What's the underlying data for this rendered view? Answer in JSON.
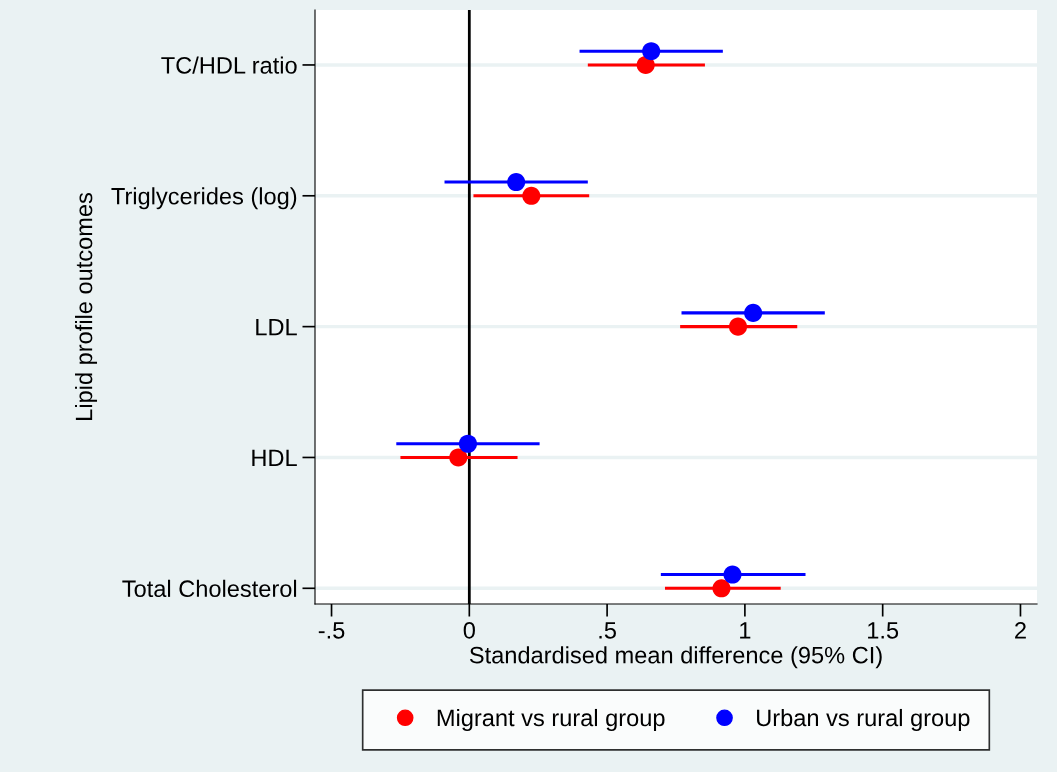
{
  "chart_data": {
    "type": "scatter",
    "orientation": "horizontal",
    "xlabel": "Standardised mean difference (95% CI)",
    "ylabel": "Lipid profile outcomes",
    "categories": [
      "TC/HDL ratio",
      "Triglycerides (log)",
      "LDL",
      "HDL",
      "Total Cholesterol"
    ],
    "series": [
      {
        "name": "Migrant vs rural group",
        "color": "#ff0000",
        "values": [
          0.64,
          0.225,
          0.975,
          -0.04,
          0.915
        ],
        "errors": [
          [
            0.43,
            0.855
          ],
          [
            0.015,
            0.435
          ],
          [
            0.765,
            1.19
          ],
          [
            -0.25,
            0.175
          ],
          [
            0.71,
            1.13
          ]
        ]
      },
      {
        "name": "Urban vs rural group",
        "color": "#0000ff",
        "values": [
          0.66,
          0.17,
          1.03,
          -0.005,
          0.955
        ],
        "errors": [
          [
            0.4,
            0.92
          ],
          [
            -0.09,
            0.43
          ],
          [
            0.77,
            1.29
          ],
          [
            -0.265,
            0.255
          ],
          [
            0.695,
            1.22
          ]
        ]
      }
    ],
    "xlim": [
      -0.56,
      2.06
    ],
    "xticks": [
      {
        "value": -0.5,
        "label": "-.5"
      },
      0,
      {
        "value": 0.5,
        "label": ".5"
      },
      1,
      1.5,
      2
    ],
    "ref_lines": [
      {
        "axis": "x",
        "value": 0,
        "color": "#000000"
      }
    ],
    "grid": "y",
    "legend": "bottom",
    "marker": "circle"
  }
}
